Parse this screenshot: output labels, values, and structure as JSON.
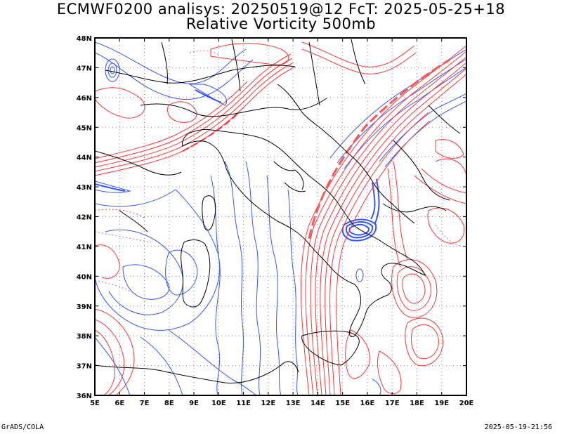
{
  "title_line1": "ECMWF0200 analisys: 20250519@12 FcT: 2025-05-25+18",
  "title_line2": "Relative Vorticity 500mb",
  "footer_left": "GrADS/COLA",
  "footer_right": "2025-05-19-21:56",
  "map": {
    "lon_range": [
      5,
      20
    ],
    "lat_range": [
      36,
      48
    ],
    "lat_labels": [
      "48N",
      "47N",
      "46N",
      "45N",
      "44N",
      "43N",
      "42N",
      "41N",
      "40N",
      "39N",
      "38N",
      "37N",
      "36N"
    ],
    "lon_labels": [
      "5E",
      "6E",
      "7E",
      "8E",
      "9E",
      "10E",
      "11E",
      "12E",
      "13E",
      "14E",
      "15E",
      "16E",
      "17E",
      "18E",
      "19E",
      "20E"
    ],
    "grid_lines": "dotted",
    "colors": {
      "positive_vorticity": "#ff3333",
      "negative_vorticity": "#3355ff",
      "borders": "#000000",
      "grid": "#888888"
    }
  }
}
